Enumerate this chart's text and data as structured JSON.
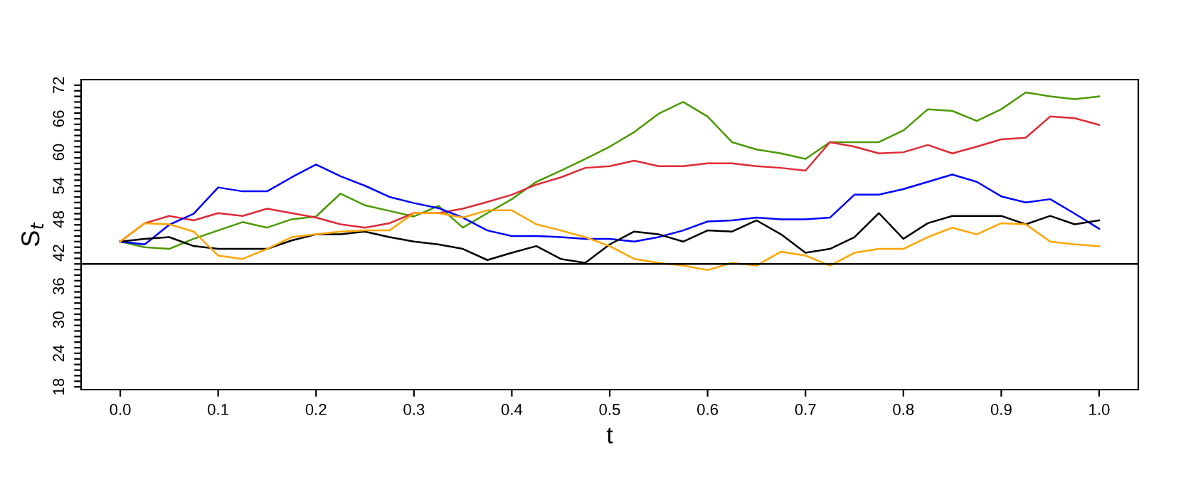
{
  "chart_data": {
    "type": "line",
    "xlabel": "t",
    "ylabel": "S$_{t}$",
    "x": [
      0,
      0.025,
      0.05,
      0.075,
      0.1,
      0.125,
      0.15,
      0.175,
      0.2,
      0.225,
      0.25,
      0.275,
      0.3,
      0.325,
      0.35,
      0.375,
      0.4,
      0.425,
      0.45,
      0.475,
      0.5,
      0.525,
      0.55,
      0.575,
      0.6,
      0.625,
      0.65,
      0.675,
      0.7,
      0.725,
      0.75,
      0.775,
      0.8,
      0.825,
      0.85,
      0.875,
      0.9,
      0.925,
      0.95,
      0.975,
      1.0
    ],
    "series": [
      {
        "color": "#4c9a00",
        "values": [
          44,
          43,
          42.7,
          44.5,
          46,
          47.5,
          46.5,
          48,
          48.5,
          52.6,
          50.5,
          49.5,
          48.5,
          50.4,
          46.5,
          49.1,
          51.6,
          54.7,
          56.7,
          58.8,
          61,
          63.6,
          66.9,
          69,
          66.4,
          61.8,
          60.5,
          59.8,
          58.8,
          61.8,
          61.8,
          61.8,
          63.9,
          67.7,
          67.4,
          65.6,
          67.7,
          70.7,
          70,
          69.5,
          70
        ]
      },
      {
        "color": "#df2b36",
        "values": [
          44,
          47.3,
          48.6,
          47.8,
          49.1,
          48.6,
          49.9,
          49.1,
          48.3,
          47.1,
          46.5,
          47.3,
          49.1,
          49.1,
          49.9,
          51.1,
          52.4,
          54.2,
          55.5,
          57.2,
          57.5,
          58.5,
          57.5,
          57.5,
          58,
          58,
          57.5,
          57.2,
          56.7,
          61.8,
          61,
          59.8,
          60,
          61.3,
          59.8,
          61,
          62.3,
          62.6,
          66.4,
          66.1,
          64.9
        ]
      },
      {
        "color": "#0000ff",
        "values": [
          44,
          43.5,
          47,
          49,
          53.7,
          53,
          53,
          55.5,
          57.8,
          55.7,
          54,
          52,
          50.9,
          50,
          48.3,
          46,
          45,
          45,
          44.8,
          44.5,
          44.5,
          44,
          44.8,
          46,
          47.6,
          47.8,
          48.3,
          48,
          48,
          48.3,
          52.4,
          52.4,
          53.4,
          54.7,
          56,
          54.7,
          52.1,
          51,
          51.6,
          49,
          46.3
        ]
      },
      {
        "color": "#000000",
        "values": [
          44,
          44.5,
          44.8,
          43.2,
          42.7,
          42.7,
          42.7,
          44.2,
          45.3,
          45.3,
          45.8,
          44.8,
          44,
          43.5,
          42.7,
          40.7,
          42,
          43.2,
          40.9,
          40.2,
          43.5,
          45.8,
          45.3,
          44,
          46,
          45.8,
          47.8,
          45.3,
          42,
          42.7,
          44.8,
          49.1,
          44.5,
          47.3,
          48.6,
          48.6,
          48.6,
          47.1,
          48.6,
          47.1,
          47.8
        ]
      },
      {
        "color": "#ffa500",
        "values": [
          44,
          47.3,
          47.1,
          45.8,
          41.5,
          40.9,
          42.7,
          44.8,
          45.3,
          45.8,
          46,
          46,
          49.1,
          49.1,
          48.3,
          49.6,
          49.6,
          47.1,
          46,
          44.8,
          43.2,
          40.9,
          40.2,
          39.7,
          38.9,
          40.2,
          39.7,
          42.2,
          41.5,
          39.7,
          42,
          42.7,
          42.7,
          44.8,
          46.5,
          45.3,
          47.3,
          47.1,
          44,
          43.5,
          43.2
        ]
      }
    ],
    "xlim": [
      -0.04,
      1.04
    ],
    "ylim": [
      17.5,
      73
    ],
    "xticks": [
      {
        "value": 0,
        "label": "0.0"
      },
      {
        "value": 0.1,
        "label": "0.1"
      },
      {
        "value": 0.2,
        "label": "0.2"
      },
      {
        "value": 0.3,
        "label": "0.3"
      },
      {
        "value": 0.4,
        "label": "0.4"
      },
      {
        "value": 0.5,
        "label": "0.5"
      },
      {
        "value": 0.6,
        "label": "0.6"
      },
      {
        "value": 0.7,
        "label": "0.7"
      },
      {
        "value": 0.8,
        "label": "0.8"
      },
      {
        "value": 0.9,
        "label": "0.9"
      },
      {
        "value": 1.0,
        "label": "1.0"
      }
    ],
    "yticks": [
      18,
      {
        "value": 19,
        "label": null
      },
      {
        "value": 20,
        "label": null
      },
      {
        "value": 21,
        "label": null
      },
      {
        "value": 22,
        "label": null
      },
      {
        "value": 23,
        "label": null
      },
      24,
      {
        "value": 25,
        "label": null
      },
      {
        "value": 26,
        "label": null
      },
      {
        "value": 27,
        "label": null
      },
      {
        "value": 28,
        "label": null
      },
      {
        "value": 29,
        "label": null
      },
      30,
      {
        "value": 31,
        "label": null
      },
      {
        "value": 32,
        "label": null
      },
      {
        "value": 33,
        "label": null
      },
      {
        "value": 34,
        "label": null
      },
      {
        "value": 35,
        "label": null
      },
      36,
      {
        "value": 37,
        "label": null
      },
      {
        "value": 38,
        "label": null
      },
      {
        "value": 39,
        "label": null
      },
      {
        "value": 40,
        "label": null
      },
      {
        "value": 41,
        "label": null
      },
      42,
      {
        "value": 43,
        "label": null
      },
      {
        "value": 44,
        "label": null
      },
      {
        "value": 45,
        "label": null
      },
      {
        "value": 46,
        "label": null
      },
      {
        "value": 47,
        "label": null
      },
      48,
      {
        "value": 49,
        "label": null
      },
      {
        "value": 50,
        "label": null
      },
      {
        "value": 51,
        "label": null
      },
      {
        "value": 52,
        "label": null
      },
      {
        "value": 53,
        "label": null
      },
      54,
      {
        "value": 55,
        "label": null
      },
      {
        "value": 56,
        "label": null
      },
      {
        "value": 57,
        "label": null
      },
      {
        "value": 58,
        "label": null
      },
      {
        "value": 59,
        "label": null
      },
      60,
      {
        "value": 61,
        "label": null
      },
      {
        "value": 62,
        "label": null
      },
      {
        "value": 63,
        "label": null
      },
      {
        "value": 64,
        "label": null
      },
      {
        "value": 65,
        "label": null
      },
      66,
      {
        "value": 67,
        "label": null
      },
      {
        "value": 68,
        "label": null
      },
      {
        "value": 69,
        "label": null
      },
      {
        "value": 70,
        "label": null
      },
      {
        "value": 71,
        "label": null
      },
      72
    ],
    "ref_lines": [
      {
        "axis": "y",
        "value": 40,
        "color": "#000000"
      }
    ],
    "grid": false,
    "legend": false,
    "line_style": "solid"
  }
}
